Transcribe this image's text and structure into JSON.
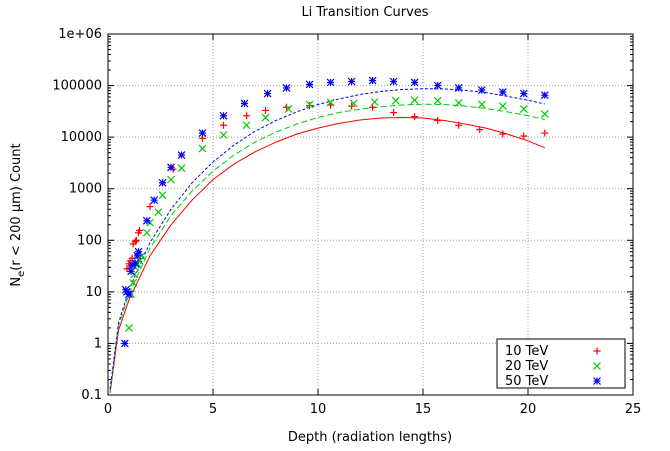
{
  "chart_data": {
    "type": "scatter",
    "title": "Li Transition Curves",
    "xlabel": "Depth (radiation lengths)",
    "ylabel": {
      "main": "N",
      "sub": "e",
      "rest": "(r < 200 µm) Count"
    },
    "xlim": [
      0,
      25
    ],
    "ylim": [
      0.1,
      1000000
    ],
    "yscale": "log",
    "grid": true,
    "legend_position": "bottom-right",
    "x_ticks": [
      {
        "value": 0,
        "label": "0"
      },
      {
        "value": 5,
        "label": "5"
      },
      {
        "value": 10,
        "label": "10"
      },
      {
        "value": 15,
        "label": "15"
      },
      {
        "value": 20,
        "label": "20"
      },
      {
        "value": 25,
        "label": "25"
      }
    ],
    "y_ticks": [
      {
        "value": 0.1,
        "label": "0.1"
      },
      {
        "value": 1,
        "label": "1"
      },
      {
        "value": 10,
        "label": "10"
      },
      {
        "value": 100,
        "label": "100"
      },
      {
        "value": 1000,
        "label": "1000"
      },
      {
        "value": 10000,
        "label": "10000"
      },
      {
        "value": 100000,
        "label": "100000"
      },
      {
        "value": 1000000,
        "label": "1e+06"
      }
    ],
    "series": [
      {
        "name": "10 TeV",
        "color": "#ff0000",
        "marker": "plus",
        "points": [
          [
            0.9,
            28
          ],
          [
            1.0,
            35
          ],
          [
            1.05,
            40
          ],
          [
            1.1,
            32
          ],
          [
            1.15,
            45
          ],
          [
            1.2,
            85
          ],
          [
            1.3,
            95
          ],
          [
            1.35,
            100
          ],
          [
            1.45,
            140
          ],
          [
            1.5,
            155
          ],
          [
            2.0,
            450
          ],
          [
            2.6,
            1300
          ],
          [
            3.1,
            2400
          ],
          [
            4.5,
            9500
          ],
          [
            5.5,
            17000
          ],
          [
            6.6,
            26000
          ],
          [
            7.5,
            33000
          ],
          [
            8.5,
            38000
          ],
          [
            9.6,
            41000
          ],
          [
            10.6,
            42000
          ],
          [
            11.6,
            40000
          ],
          [
            12.6,
            38000
          ],
          [
            13.6,
            30000
          ],
          [
            14.6,
            25000
          ],
          [
            15.7,
            21000
          ],
          [
            16.7,
            17000
          ],
          [
            17.7,
            14000
          ],
          [
            18.8,
            11500
          ],
          [
            19.8,
            10500
          ],
          [
            20.8,
            12000
          ]
        ],
        "fit": [
          [
            0.1,
            0.11
          ],
          [
            0.5,
            1.8
          ],
          [
            1,
            7
          ],
          [
            2,
            50
          ],
          [
            3,
            200
          ],
          [
            4,
            600
          ],
          [
            5,
            1500
          ],
          [
            6,
            3000
          ],
          [
            7,
            5200
          ],
          [
            8,
            8000
          ],
          [
            9,
            11500
          ],
          [
            10,
            15000
          ],
          [
            11,
            18500
          ],
          [
            12,
            21500
          ],
          [
            13,
            23500
          ],
          [
            14,
            24000
          ],
          [
            15,
            23500
          ],
          [
            16,
            21000
          ],
          [
            17,
            18000
          ],
          [
            18,
            15000
          ],
          [
            19,
            11500
          ],
          [
            20,
            8500
          ],
          [
            20.8,
            6200
          ]
        ]
      },
      {
        "name": "20 TeV",
        "color": "#00cc00",
        "marker": "cross",
        "points": [
          [
            1.0,
            2
          ],
          [
            1.1,
            9
          ],
          [
            1.2,
            15
          ],
          [
            1.25,
            22
          ],
          [
            1.3,
            30
          ],
          [
            1.4,
            35
          ],
          [
            1.5,
            40
          ],
          [
            1.6,
            50
          ],
          [
            1.85,
            140
          ],
          [
            2.0,
            220
          ],
          [
            2.4,
            350
          ],
          [
            2.6,
            750
          ],
          [
            3.0,
            1500
          ],
          [
            3.5,
            2500
          ],
          [
            4.5,
            6000
          ],
          [
            5.5,
            11000
          ],
          [
            6.6,
            17000
          ],
          [
            7.5,
            24000
          ],
          [
            8.6,
            35000
          ],
          [
            9.6,
            43000
          ],
          [
            10.6,
            47000
          ],
          [
            11.7,
            45000
          ],
          [
            12.7,
            48000
          ],
          [
            13.7,
            51000
          ],
          [
            14.6,
            52000
          ],
          [
            15.7,
            51000
          ],
          [
            16.7,
            46000
          ],
          [
            17.8,
            43000
          ],
          [
            18.8,
            40000
          ],
          [
            19.8,
            35000
          ],
          [
            20.8,
            28000
          ]
        ],
        "fit": [
          [
            0.1,
            0.12
          ],
          [
            0.5,
            2.2
          ],
          [
            1,
            9
          ],
          [
            2,
            70
          ],
          [
            3,
            300
          ],
          [
            4,
            900
          ],
          [
            5,
            2200
          ],
          [
            6,
            4500
          ],
          [
            7,
            8000
          ],
          [
            8,
            12500
          ],
          [
            9,
            18000
          ],
          [
            10,
            24000
          ],
          [
            11,
            30000
          ],
          [
            12,
            35000
          ],
          [
            13,
            39000
          ],
          [
            14,
            42000
          ],
          [
            15,
            43500
          ],
          [
            16,
            43000
          ],
          [
            17,
            40000
          ],
          [
            18,
            36000
          ],
          [
            19,
            31000
          ],
          [
            20,
            26000
          ],
          [
            20.8,
            22000
          ]
        ]
      },
      {
        "name": "50 TeV",
        "color": "#0000ff",
        "marker": "star",
        "points": [
          [
            0.8,
            1
          ],
          [
            0.85,
            11
          ],
          [
            0.9,
            10
          ],
          [
            1.0,
            9
          ],
          [
            1.1,
            25
          ],
          [
            1.15,
            33
          ],
          [
            1.3,
            36
          ],
          [
            1.4,
            50
          ],
          [
            1.45,
            60
          ],
          [
            1.85,
            240
          ],
          [
            2.2,
            600
          ],
          [
            2.6,
            1300
          ],
          [
            3.0,
            2600
          ],
          [
            3.5,
            4500
          ],
          [
            4.5,
            12000
          ],
          [
            5.5,
            26000
          ],
          [
            6.5,
            45000
          ],
          [
            7.6,
            70000
          ],
          [
            8.5,
            90000
          ],
          [
            9.6,
            105000
          ],
          [
            10.6,
            115000
          ],
          [
            11.6,
            120000
          ],
          [
            12.6,
            125000
          ],
          [
            13.6,
            120000
          ],
          [
            14.6,
            115000
          ],
          [
            15.7,
            100000
          ],
          [
            16.7,
            90000
          ],
          [
            17.8,
            82000
          ],
          [
            18.8,
            75000
          ],
          [
            19.8,
            70000
          ],
          [
            20.8,
            65000
          ]
        ],
        "fit": [
          [
            0.1,
            0.13
          ],
          [
            0.5,
            2.5
          ],
          [
            1,
            11
          ],
          [
            2,
            90
          ],
          [
            3,
            400
          ],
          [
            4,
            1300
          ],
          [
            5,
            3300
          ],
          [
            6,
            7000
          ],
          [
            7,
            13000
          ],
          [
            8,
            21000
          ],
          [
            9,
            31000
          ],
          [
            10,
            43000
          ],
          [
            11,
            55000
          ],
          [
            12,
            67000
          ],
          [
            13,
            77000
          ],
          [
            14,
            84000
          ],
          [
            15,
            87000
          ],
          [
            16,
            86000
          ],
          [
            17,
            81000
          ],
          [
            18,
            73000
          ],
          [
            19,
            62000
          ],
          [
            20,
            52000
          ],
          [
            20.8,
            44000
          ]
        ]
      }
    ]
  }
}
